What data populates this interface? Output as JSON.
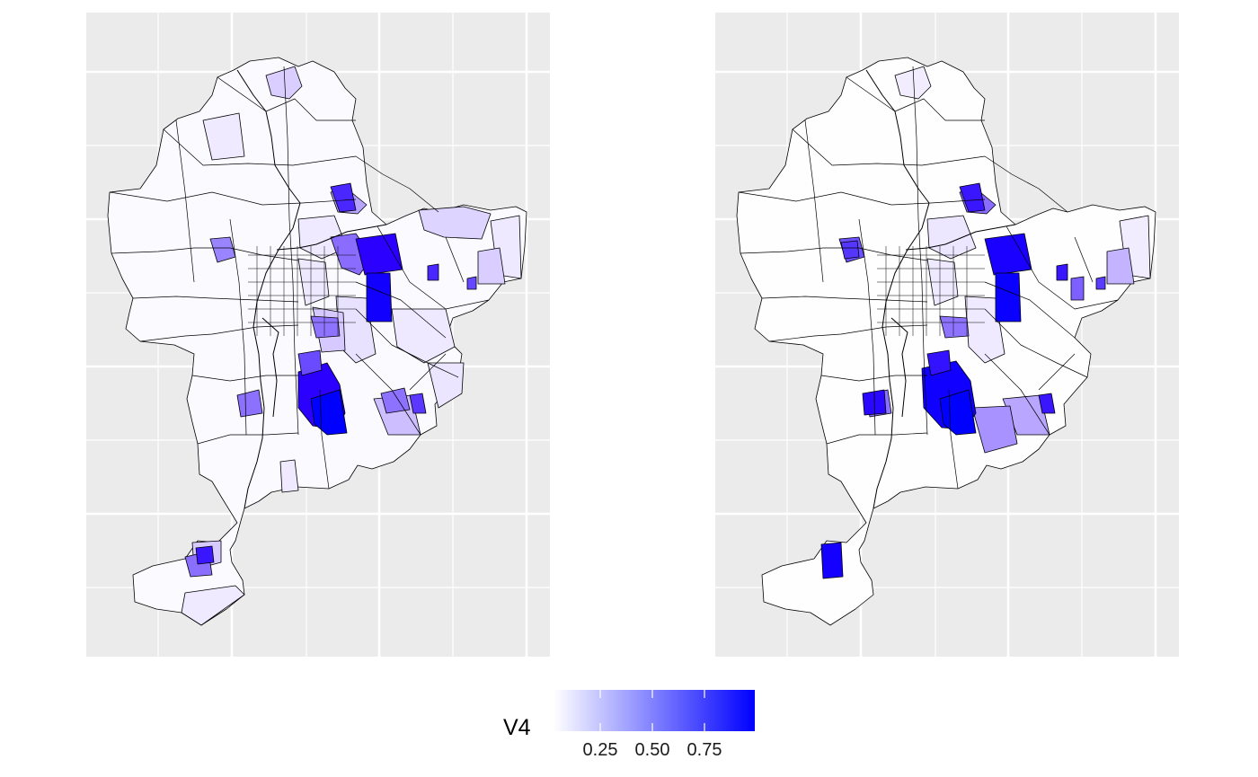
{
  "panels": [
    {
      "id": "left",
      "label": ""
    },
    {
      "id": "right",
      "label": ""
    }
  ],
  "legend": {
    "title": "V4",
    "ticks": [
      "0.25",
      "0.50",
      "0.75"
    ],
    "scale": {
      "low_color": "#ffffff",
      "high_color": "#0000ff",
      "min": 0,
      "max": 1
    }
  },
  "colors": {
    "panel_background": "#ebebeb",
    "grid_line": "#ffffff",
    "boundary_stroke": "#000000"
  }
}
